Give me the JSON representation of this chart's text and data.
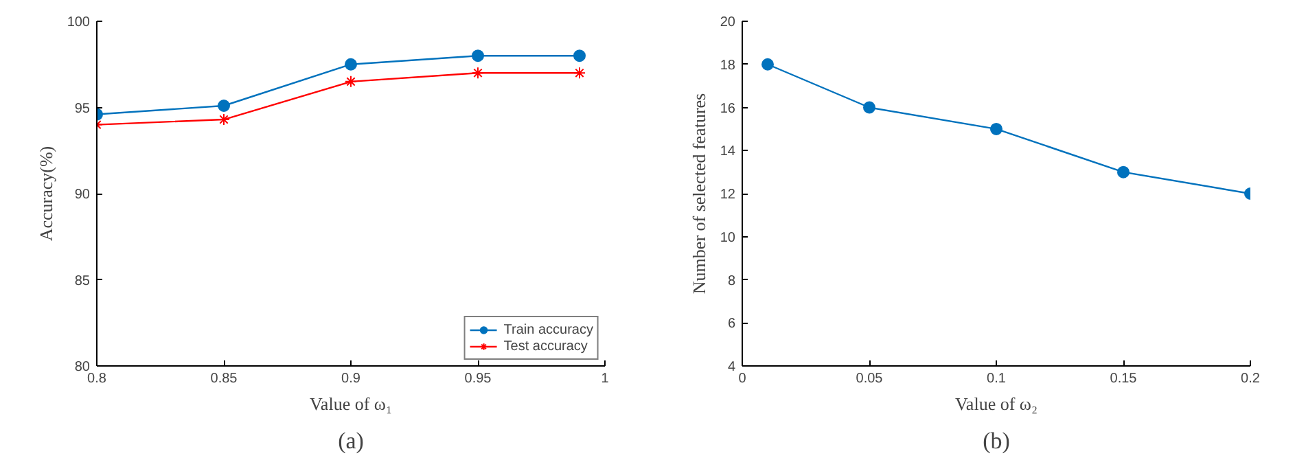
{
  "chart_data": [
    {
      "type": "line",
      "xlabel": "Value of ω₁",
      "ylabel": "Accuracy(%)",
      "annotations": [
        "(a)"
      ],
      "x": [
        0.8,
        0.85,
        0.9,
        0.95,
        0.99
      ],
      "xlim": [
        0.8,
        1
      ],
      "xticks": [
        0.8,
        0.85,
        0.9,
        0.95,
        1
      ],
      "ylim": [
        80,
        100
      ],
      "yticks": [
        80,
        85,
        90,
        95,
        100
      ],
      "grid": false,
      "legend": "bottom right",
      "series": [
        {
          "name": "Train accuracy",
          "color": "#0072bd",
          "marker": "circle",
          "values": [
            94.6,
            95.1,
            97.5,
            98.0,
            98.0
          ]
        },
        {
          "name": "Test accuracy",
          "color": "#ff0000",
          "marker": "cross",
          "values": [
            94.0,
            94.3,
            96.5,
            97.0,
            97.0
          ]
        }
      ]
    },
    {
      "type": "line",
      "xlabel": "Value of ω₂",
      "ylabel": "Number of selected features",
      "annotations": [
        "(b)"
      ],
      "x": [
        0.01,
        0.05,
        0.1,
        0.15,
        0.2
      ],
      "xlim": [
        0,
        0.2
      ],
      "xticks": [
        0,
        0.05,
        0.1,
        0.15,
        0.2
      ],
      "ylim": [
        4,
        20
      ],
      "yticks": [
        4,
        6,
        8,
        10,
        12,
        14,
        16,
        18,
        20
      ],
      "grid": false,
      "legend": false,
      "marker": "circle",
      "series": [
        {
          "color": "#0072bd",
          "values": [
            18,
            16,
            15,
            13,
            12
          ]
        }
      ]
    }
  ]
}
